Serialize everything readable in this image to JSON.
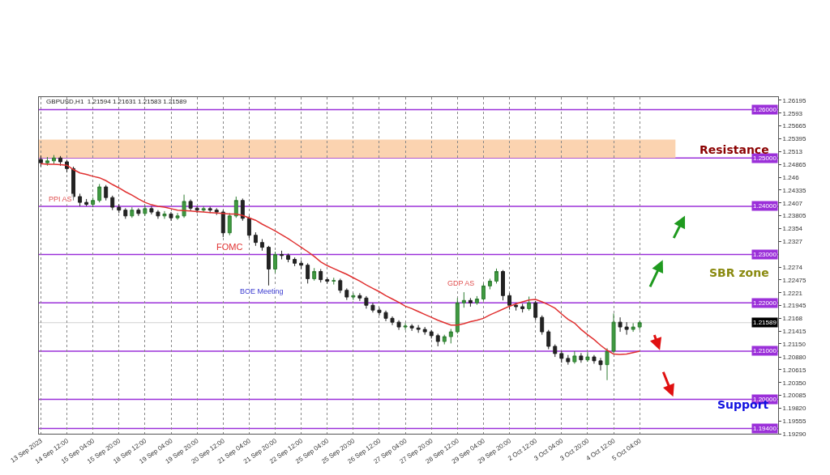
{
  "chart_data": {
    "type": "candlestick",
    "title": "GBPUSD,H1  1.21594 1.21631 1.21583 1.21589",
    "categories": [
      "13 Sep 2023",
      null,
      null,
      null,
      "14 Sep 12:00",
      null,
      null,
      null,
      "15 Sep 04:00",
      null,
      null,
      null,
      "15 Sep 20:00",
      null,
      null,
      null,
      "18 Sep 12:00",
      null,
      null,
      null,
      "19 Sep 04:00",
      null,
      null,
      null,
      "19 Sep 20:00",
      null,
      null,
      null,
      "20 Sep 12:00",
      null,
      null,
      null,
      "21 Sep 04:00",
      null,
      null,
      null,
      "21 Sep 20:00",
      null,
      null,
      null,
      "22 Sep 12:00",
      null,
      null,
      null,
      "25 Sep 04:00",
      null,
      null,
      null,
      "25 Sep 20:00",
      null,
      null,
      null,
      "26 Sep 12:00",
      null,
      null,
      null,
      "27 Sep 04:00",
      null,
      null,
      null,
      "27 Sep 20:00",
      null,
      null,
      null,
      "28 Sep 12:00",
      null,
      null,
      null,
      "29 Sep 04:00",
      null,
      null,
      null,
      "29 Sep 20:00",
      null,
      null,
      null,
      "2 Oct 12:00",
      null,
      null,
      null,
      "3 Oct 04:00",
      null,
      null,
      null,
      "3 Oct 20:00",
      null,
      null,
      null,
      "4 Oct 12:00",
      null,
      null,
      null,
      "5 Oct 04:00"
    ],
    "ohlc": [
      [
        1.2497,
        1.2505,
        1.2482,
        1.249
      ],
      [
        1.249,
        1.2502,
        1.2484,
        1.2494
      ],
      [
        1.2494,
        1.2506,
        1.2488,
        1.25
      ],
      [
        1.25,
        1.2504,
        1.2484,
        1.2492
      ],
      [
        1.2492,
        1.2496,
        1.247,
        1.2478
      ],
      [
        1.2478,
        1.2482,
        1.2412,
        1.242
      ],
      [
        1.242,
        1.2426,
        1.24,
        1.2408
      ],
      [
        1.2408,
        1.2415,
        1.24,
        1.2404
      ],
      [
        1.2404,
        1.2418,
        1.2398,
        1.2412
      ],
      [
        1.2412,
        1.2446,
        1.2408,
        1.244
      ],
      [
        1.244,
        1.2444,
        1.2412,
        1.2418
      ],
      [
        1.2418,
        1.2422,
        1.2392,
        1.2398
      ],
      [
        1.2398,
        1.2404,
        1.2386,
        1.2392
      ],
      [
        1.2392,
        1.2396,
        1.2374,
        1.238
      ],
      [
        1.238,
        1.2398,
        1.2376,
        1.2392
      ],
      [
        1.2392,
        1.2396,
        1.238,
        1.2385
      ],
      [
        1.2385,
        1.2402,
        1.238,
        1.2395
      ],
      [
        1.2395,
        1.24,
        1.2383,
        1.2388
      ],
      [
        1.2388,
        1.2392,
        1.2374,
        1.238
      ],
      [
        1.238,
        1.239,
        1.2374,
        1.2384
      ],
      [
        1.2384,
        1.2388,
        1.237,
        1.2376
      ],
      [
        1.2376,
        1.2386,
        1.2372,
        1.238
      ],
      [
        1.238,
        1.2424,
        1.2376,
        1.241
      ],
      [
        1.241,
        1.2414,
        1.239,
        1.2396
      ],
      [
        1.2396,
        1.24,
        1.2386,
        1.2392
      ],
      [
        1.2392,
        1.24,
        1.2388,
        1.2395
      ],
      [
        1.2395,
        1.2399,
        1.2386,
        1.2392
      ],
      [
        1.2392,
        1.2396,
        1.2382,
        1.2388
      ],
      [
        1.2388,
        1.2392,
        1.2336,
        1.2345
      ],
      [
        1.2345,
        1.2386,
        1.234,
        1.238
      ],
      [
        1.238,
        1.242,
        1.2376,
        1.2412
      ],
      [
        1.2412,
        1.2416,
        1.237,
        1.2375
      ],
      [
        1.2375,
        1.238,
        1.2334,
        1.234
      ],
      [
        1.234,
        1.2346,
        1.2318,
        1.2325
      ],
      [
        1.2325,
        1.2332,
        1.2308,
        1.2315
      ],
      [
        1.2315,
        1.2318,
        1.2236,
        1.227
      ],
      [
        1.227,
        1.2306,
        1.2262,
        1.23
      ],
      [
        1.23,
        1.2308,
        1.229,
        1.2298
      ],
      [
        1.2298,
        1.2302,
        1.2284,
        1.229
      ],
      [
        1.229,
        1.2294,
        1.2276,
        1.2282
      ],
      [
        1.2282,
        1.2288,
        1.227,
        1.2278
      ],
      [
        1.2278,
        1.2282,
        1.224,
        1.225
      ],
      [
        1.225,
        1.2272,
        1.2246,
        1.2265
      ],
      [
        1.2265,
        1.227,
        1.2242,
        1.2248
      ],
      [
        1.2248,
        1.2252,
        1.224,
        1.2245
      ],
      [
        1.2245,
        1.2252,
        1.2238,
        1.2246
      ],
      [
        1.2246,
        1.225,
        1.222,
        1.2226
      ],
      [
        1.2226,
        1.223,
        1.2206,
        1.2212
      ],
      [
        1.2212,
        1.222,
        1.2206,
        1.2215
      ],
      [
        1.2215,
        1.222,
        1.2204,
        1.221
      ],
      [
        1.221,
        1.2214,
        1.2188,
        1.2195
      ],
      [
        1.2195,
        1.22,
        1.218,
        1.2185
      ],
      [
        1.2185,
        1.219,
        1.2174,
        1.218
      ],
      [
        1.218,
        1.2184,
        1.2162,
        1.2168
      ],
      [
        1.2168,
        1.2172,
        1.2154,
        1.216
      ],
      [
        1.216,
        1.2164,
        1.2144,
        1.215
      ],
      [
        1.215,
        1.2158,
        1.2144,
        1.2152
      ],
      [
        1.2152,
        1.2156,
        1.2142,
        1.2148
      ],
      [
        1.2148,
        1.2154,
        1.2138,
        1.2145
      ],
      [
        1.2145,
        1.215,
        1.2134,
        1.214
      ],
      [
        1.214,
        1.2144,
        1.2126,
        1.2132
      ],
      [
        1.2132,
        1.2136,
        1.211,
        1.212
      ],
      [
        1.212,
        1.2134,
        1.2114,
        1.213
      ],
      [
        1.213,
        1.2146,
        1.2116,
        1.214
      ],
      [
        1.214,
        1.221,
        1.2136,
        1.22
      ],
      [
        1.22,
        1.2222,
        1.219,
        1.2205
      ],
      [
        1.2205,
        1.221,
        1.2192,
        1.22
      ],
      [
        1.22,
        1.2214,
        1.2196,
        1.2208
      ],
      [
        1.2208,
        1.224,
        1.2204,
        1.2235
      ],
      [
        1.2235,
        1.225,
        1.2228,
        1.2245
      ],
      [
        1.2245,
        1.2271,
        1.224,
        1.2265
      ],
      [
        1.2265,
        1.2268,
        1.2205,
        1.2215
      ],
      [
        1.2215,
        1.222,
        1.2186,
        1.2195
      ],
      [
        1.2195,
        1.22,
        1.2184,
        1.2192
      ],
      [
        1.2192,
        1.2198,
        1.218,
        1.2188
      ],
      [
        1.2188,
        1.2213,
        1.2184,
        1.22
      ],
      [
        1.22,
        1.2204,
        1.2164,
        1.217
      ],
      [
        1.217,
        1.2174,
        1.2134,
        1.214
      ],
      [
        1.214,
        1.2144,
        1.2104,
        1.211
      ],
      [
        1.211,
        1.2114,
        1.2088,
        1.2095
      ],
      [
        1.2095,
        1.21,
        1.2076,
        1.2085
      ],
      [
        1.2085,
        1.2092,
        1.2072,
        1.2078
      ],
      [
        1.2078,
        1.21,
        1.2074,
        1.209
      ],
      [
        1.209,
        1.2096,
        1.2076,
        1.2082
      ],
      [
        1.2082,
        1.2098,
        1.2078,
        1.2088
      ],
      [
        1.2088,
        1.2092,
        1.2074,
        1.208
      ],
      [
        1.208,
        1.2086,
        1.206,
        1.2072
      ],
      [
        1.2072,
        1.2106,
        1.204,
        1.21
      ],
      [
        1.21,
        1.2178,
        1.2096,
        1.216
      ],
      [
        1.216,
        1.217,
        1.214,
        1.215
      ],
      [
        1.215,
        1.216,
        1.2134,
        1.2145
      ],
      [
        1.2145,
        1.2158,
        1.214,
        1.215
      ],
      [
        1.215,
        1.21631,
        1.2144,
        1.21589
      ]
    ],
    "series": [
      {
        "type": "line",
        "color": "#e03030",
        "values": [
          1.2488,
          1.2487,
          1.2487,
          1.2486,
          1.2485,
          1.2476,
          1.2469,
          1.2466,
          1.2462,
          1.2459,
          1.2453,
          1.2445,
          1.2438,
          1.243,
          1.2423,
          1.2415,
          1.2408,
          1.2403,
          1.24,
          1.2398,
          1.2395,
          1.2392,
          1.2391,
          1.239,
          1.2389,
          1.2388,
          1.2387,
          1.2386,
          1.2385,
          1.2384,
          1.2384,
          1.2381,
          1.2376,
          1.2371,
          1.2363,
          1.2356,
          1.2349,
          1.2341,
          1.2333,
          1.2324,
          1.2315,
          1.2306,
          1.2296,
          1.2285,
          1.2277,
          1.2271,
          1.2265,
          1.2259,
          1.2252,
          1.2245,
          1.2237,
          1.223,
          1.2223,
          1.2215,
          1.2208,
          1.2201,
          1.2193,
          1.2188,
          1.2182,
          1.2176,
          1.217,
          1.2164,
          1.2159,
          1.2154,
          1.2154,
          1.2157,
          1.2161,
          1.2164,
          1.2168,
          1.2175,
          1.2181,
          1.2187,
          1.2193,
          1.2198,
          1.2202,
          1.2206,
          1.2207,
          1.2202,
          1.2196,
          1.2189,
          1.2177,
          1.2166,
          1.2158,
          1.2145,
          1.2134,
          1.2124,
          1.2112,
          1.2102,
          1.2094,
          1.2093,
          1.2094,
          1.2097,
          1.21
        ]
      }
    ],
    "ylim": [
      1.1929,
      1.2626
    ],
    "yticks": [
      1.26195,
      1.2593,
      1.25665,
      1.25395,
      1.2513,
      1.24865,
      1.246,
      1.24335,
      1.2407,
      1.23805,
      1.2354,
      1.2327,
      1.2274,
      1.22475,
      1.2221,
      1.21945,
      1.2168,
      1.21415,
      {
        "value": 1.2115,
        "label": "1.21150"
      },
      {
        "value": 1.2088,
        "label": "1.20880"
      },
      1.20615,
      {
        "value": 1.2035,
        "label": "1.20350"
      },
      1.20085,
      {
        "value": 1.1982,
        "label": "1.19820"
      },
      1.19555,
      {
        "value": 1.1929,
        "label": "1.19290"
      }
    ],
    "ref_lines": [
      {
        "axis": "y",
        "value": 1.26,
        "label": "1.26000",
        "color": "#9b30d9"
      },
      {
        "axis": "y",
        "value": 1.25,
        "label": "1.25000",
        "color": "#9b30d9"
      },
      {
        "axis": "y",
        "value": 1.24,
        "label": "1.24000",
        "color": "#9b30d9"
      },
      {
        "axis": "y",
        "value": 1.23,
        "label": "1.23000",
        "color": "#9b30d9"
      },
      {
        "axis": "y",
        "value": 1.22,
        "label": "1.22000",
        "color": "#9b30d9"
      },
      {
        "axis": "y",
        "value": 1.21,
        "label": "1.21000",
        "color": "#9b30d9"
      },
      {
        "axis": "y",
        "value": 1.2,
        "label": "1.20000",
        "color": "#9b30d9"
      },
      {
        "axis": "y",
        "value": 1.194,
        "label": "1.19400",
        "color": "#9b30d9"
      },
      {
        "axis": "y",
        "value": 1.21589,
        "label": "1.21589",
        "color": "#d0d0d0"
      }
    ],
    "bands": [
      {
        "axis": "y",
        "from": 1.25,
        "to": 1.2538,
        "color": "#fbd3b0"
      }
    ],
    "annotations": [
      "PPI AS",
      "FOMC",
      "BOE Meeting",
      "GDP AS",
      "Resistance",
      "SBR zone",
      "Support"
    ],
    "grid": "x"
  }
}
